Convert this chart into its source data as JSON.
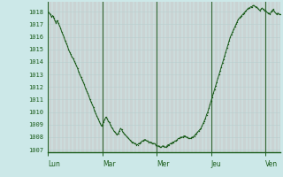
{
  "background_color": "#cce8e8",
  "plot_bg_color": "#cce8e8",
  "line_color": "#1a5c1a",
  "marker_color": "#1a5c1a",
  "axis_label_color": "#1a5c1a",
  "tick_label_color": "#1a5c1a",
  "vgrid_color": "#c8a8a8",
  "hgrid_color": "#b8cece",
  "day_vline_color": "#336633",
  "ylim": [
    1006.8,
    1018.8
  ],
  "yticks": [
    1007,
    1008,
    1009,
    1010,
    1011,
    1012,
    1013,
    1014,
    1015,
    1016,
    1017,
    1018
  ],
  "day_labels": [
    "Lun",
    "Mar",
    "Mer",
    "Jeu",
    "Ven"
  ],
  "day_positions": [
    0,
    48,
    96,
    144,
    192
  ],
  "total_points": 240,
  "vline_positions": [
    0,
    48,
    96,
    144,
    192
  ],
  "y_values": [
    1018.0,
    1017.9,
    1017.8,
    1017.6,
    1017.7,
    1017.5,
    1017.3,
    1017.1,
    1017.3,
    1017.1,
    1016.9,
    1016.7,
    1016.4,
    1016.2,
    1016.0,
    1015.7,
    1015.5,
    1015.3,
    1015.0,
    1014.8,
    1014.6,
    1014.4,
    1014.3,
    1014.1,
    1013.9,
    1013.7,
    1013.5,
    1013.2,
    1013.0,
    1012.8,
    1012.6,
    1012.4,
    1012.2,
    1011.9,
    1011.7,
    1011.5,
    1011.3,
    1011.0,
    1010.8,
    1010.6,
    1010.4,
    1010.1,
    1009.9,
    1009.7,
    1009.5,
    1009.3,
    1009.1,
    1008.9,
    1009.0,
    1009.2,
    1009.4,
    1009.6,
    1009.5,
    1009.3,
    1009.2,
    1009.0,
    1008.8,
    1008.7,
    1008.5,
    1008.4,
    1008.3,
    1008.2,
    1008.3,
    1008.5,
    1008.7,
    1008.6,
    1008.4,
    1008.3,
    1008.2,
    1008.1,
    1008.0,
    1007.9,
    1007.8,
    1007.7,
    1007.6,
    1007.6,
    1007.5,
    1007.5,
    1007.4,
    1007.4,
    1007.5,
    1007.5,
    1007.6,
    1007.7,
    1007.7,
    1007.8,
    1007.8,
    1007.7,
    1007.7,
    1007.6,
    1007.6,
    1007.6,
    1007.5,
    1007.5,
    1007.5,
    1007.4,
    1007.3,
    1007.3,
    1007.3,
    1007.2,
    1007.2,
    1007.3,
    1007.3,
    1007.2,
    1007.2,
    1007.3,
    1007.4,
    1007.4,
    1007.5,
    1007.5,
    1007.6,
    1007.6,
    1007.7,
    1007.7,
    1007.8,
    1007.9,
    1007.9,
    1008.0,
    1008.0,
    1008.0,
    1008.1,
    1008.1,
    1008.0,
    1008.0,
    1007.9,
    1007.9,
    1007.9,
    1008.0,
    1008.0,
    1008.1,
    1008.2,
    1008.3,
    1008.4,
    1008.5,
    1008.6,
    1008.7,
    1008.9,
    1009.1,
    1009.3,
    1009.5,
    1009.8,
    1010.0,
    1010.3,
    1010.6,
    1010.9,
    1011.2,
    1011.5,
    1011.8,
    1012.1,
    1012.4,
    1012.7,
    1013.0,
    1013.3,
    1013.6,
    1013.9,
    1014.2,
    1014.5,
    1014.8,
    1015.1,
    1015.4,
    1015.7,
    1016.0,
    1016.2,
    1016.4,
    1016.6,
    1016.8,
    1017.0,
    1017.2,
    1017.4,
    1017.5,
    1017.6,
    1017.7,
    1017.8,
    1017.9,
    1018.0,
    1018.1,
    1018.2,
    1018.3,
    1018.3,
    1018.4,
    1018.4,
    1018.5,
    1018.5,
    1018.4,
    1018.4,
    1018.3,
    1018.2,
    1018.1,
    1018.2,
    1018.3,
    1018.2,
    1018.1,
    1018.1,
    1018.0,
    1017.9,
    1017.9,
    1017.8,
    1018.0,
    1018.1,
    1018.2,
    1018.0,
    1017.9,
    1017.8,
    1017.9,
    1017.8,
    1017.8
  ]
}
